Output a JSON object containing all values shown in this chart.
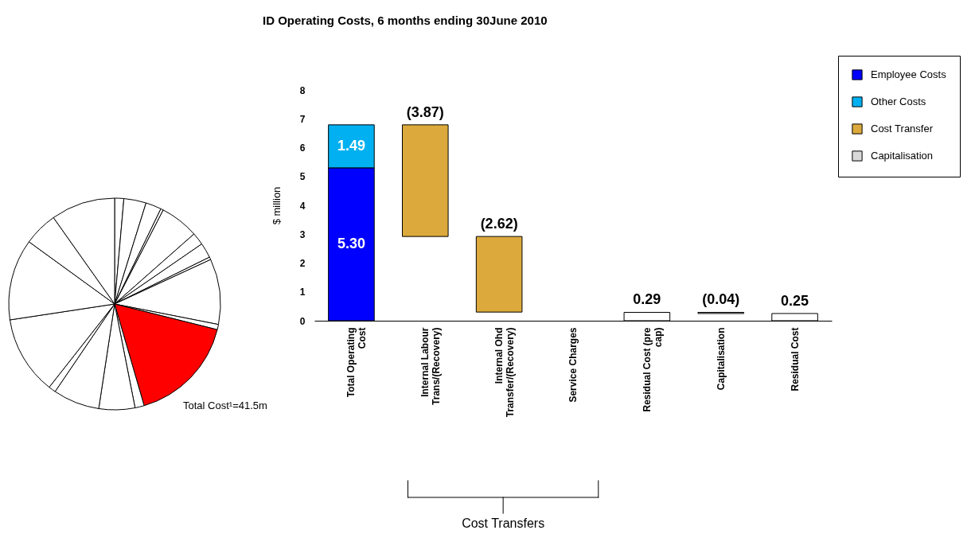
{
  "chart_data": [
    {
      "type": "pie",
      "categories": [
        null,
        null,
        null,
        null,
        null,
        null,
        null,
        null,
        null,
        null,
        null,
        null,
        null,
        null,
        null,
        null,
        null,
        null,
        null
      ],
      "values": [
        1.4,
        3.4,
        2.4,
        0.4,
        5.9,
        1.9,
        2.3,
        0.4,
        10.0,
        0.8,
        16.6,
        1.4,
        5.5,
        7.1,
        1.1,
        12.0,
        12.4,
        5.2,
        9.8
      ],
      "colors": [
        "#ffffff",
        "#ffffff",
        "#ffffff",
        "#ffffff",
        "#ffffff",
        "#ffffff",
        "#ffffff",
        "#ffffff",
        "#ffffff",
        "#ffffff",
        "#ff0000",
        "#ffffff",
        "#ffffff",
        "#ffffff",
        "#ffffff",
        "#ffffff",
        "#ffffff",
        "#ffffff",
        "#ffffff"
      ],
      "annotations": [
        "Total Cost¹=41.5m"
      ]
    },
    {
      "type": "bar",
      "title": "ID Operating Costs, 6 months ending 30June 2010",
      "ylabel": "$ million",
      "categories": [
        "Total Operating Cost",
        "Internal Labour Trans/(Recovery)",
        "Internal Ohd Transfer/(Recovery)",
        "Service Charges",
        "Residual Cost (pre cap)",
        "Capitalisation",
        "Residual Cost"
      ],
      "stacked": true,
      "series": [
        {
          "name": "Employee Costs",
          "color": "#0000ff",
          "values": [
            5.3,
            null,
            null,
            null,
            null,
            null,
            null
          ],
          "value_labels": [
            "5.30",
            null,
            null,
            null,
            null,
            null,
            null
          ]
        },
        {
          "name": "Other Costs",
          "color": "#00b0f0",
          "values": [
            1.49,
            null,
            null,
            null,
            null,
            null,
            null
          ],
          "value_labels": [
            "1.49",
            null,
            null,
            null,
            null,
            null,
            null
          ]
        },
        {
          "name": "Cost Transfer",
          "color": "#dcaa3c",
          "values": [
            null,
            -3.87,
            -2.62,
            null,
            null,
            null,
            null
          ],
          "base": [
            null,
            6.79,
            2.92,
            null,
            null,
            null,
            null
          ],
          "value_labels": [
            null,
            "(3.87)",
            "(2.62)",
            null,
            null,
            null,
            null
          ]
        },
        {
          "name": "Capitalisation",
          "color": "#d9d9d9",
          "values": [
            null,
            null,
            null,
            null,
            null,
            -0.04,
            null
          ],
          "base": [
            null,
            null,
            null,
            null,
            null,
            0.29,
            null
          ],
          "value_labels": [
            null,
            null,
            null,
            null,
            null,
            "(0.04)",
            null
          ]
        },
        {
          "color": "#ffffff",
          "values": [
            null,
            null,
            null,
            null,
            0.29,
            null,
            0.25
          ],
          "value_labels": [
            null,
            null,
            null,
            null,
            "0.29",
            null,
            "0.25"
          ]
        }
      ],
      "ylim": [
        0,
        8
      ],
      "yticks": [
        0,
        1,
        2,
        3,
        4,
        5,
        6,
        7,
        8
      ],
      "legend": "top right",
      "annotations": [
        "Cost Transfers"
      ]
    }
  ]
}
